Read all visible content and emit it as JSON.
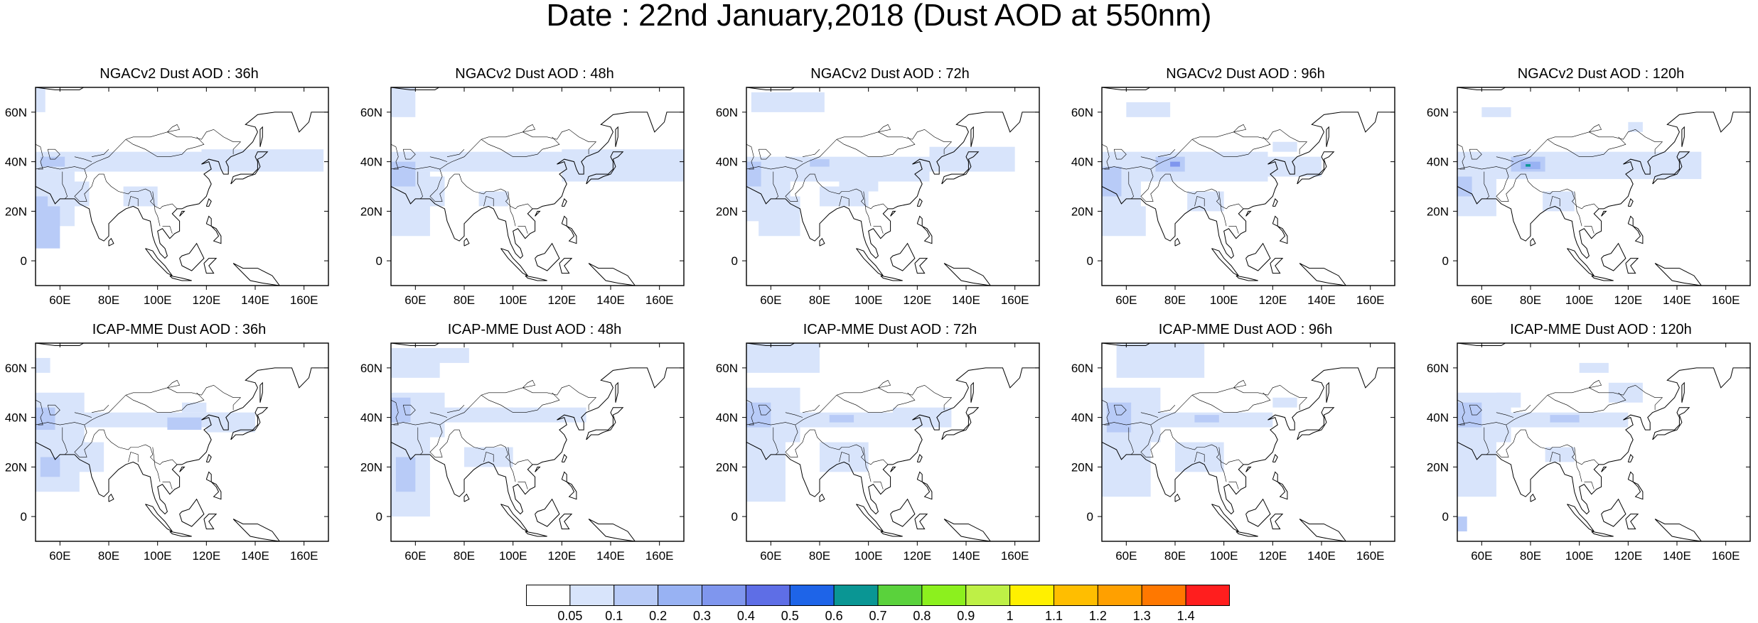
{
  "title": "Date : 22nd January,2018 (Dust AOD at 550nm)",
  "axes": {
    "lon_ticks": [
      "60E",
      "80E",
      "100E",
      "120E",
      "140E",
      "160E"
    ],
    "lat_ticks": [
      "60N",
      "40N",
      "20N",
      "0"
    ],
    "lon_range": [
      50,
      170
    ],
    "lat_range": [
      -10,
      70
    ]
  },
  "panels": [
    {
      "title": "NGACv2 Dust AOD : 36h",
      "row": 0,
      "col": 0
    },
    {
      "title": "NGACv2 Dust AOD : 48h",
      "row": 0,
      "col": 1
    },
    {
      "title": "NGACv2 Dust AOD : 72h",
      "row": 0,
      "col": 2
    },
    {
      "title": "NGACv2 Dust AOD : 96h",
      "row": 0,
      "col": 3
    },
    {
      "title": "NGACv2 Dust AOD : 120h",
      "row": 0,
      "col": 4
    },
    {
      "title": "ICAP-MME Dust AOD : 36h",
      "row": 1,
      "col": 0
    },
    {
      "title": "ICAP-MME Dust AOD : 48h",
      "row": 1,
      "col": 1
    },
    {
      "title": "ICAP-MME Dust AOD : 72h",
      "row": 1,
      "col": 2
    },
    {
      "title": "ICAP-MME Dust AOD : 96h",
      "row": 1,
      "col": 3
    },
    {
      "title": "ICAP-MME Dust AOD : 120h",
      "row": 1,
      "col": 4
    }
  ],
  "colorbar": {
    "labels": [
      "0.05",
      "0.1",
      "0.2",
      "0.3",
      "0.4",
      "0.5",
      "0.6",
      "0.7",
      "0.8",
      "0.9",
      "1",
      "1.1",
      "1.2",
      "1.3",
      "1.4"
    ],
    "colors": [
      "#ffffff",
      "#d8e4fb",
      "#b8cbf7",
      "#98b2f3",
      "#7f96ee",
      "#5e6ee6",
      "#1e64e8",
      "#0a9694",
      "#5ad23c",
      "#8cf01e",
      "#bef046",
      "#fff000",
      "#ffbe00",
      "#ffa000",
      "#ff7800",
      "#ff1e1e"
    ]
  }
}
